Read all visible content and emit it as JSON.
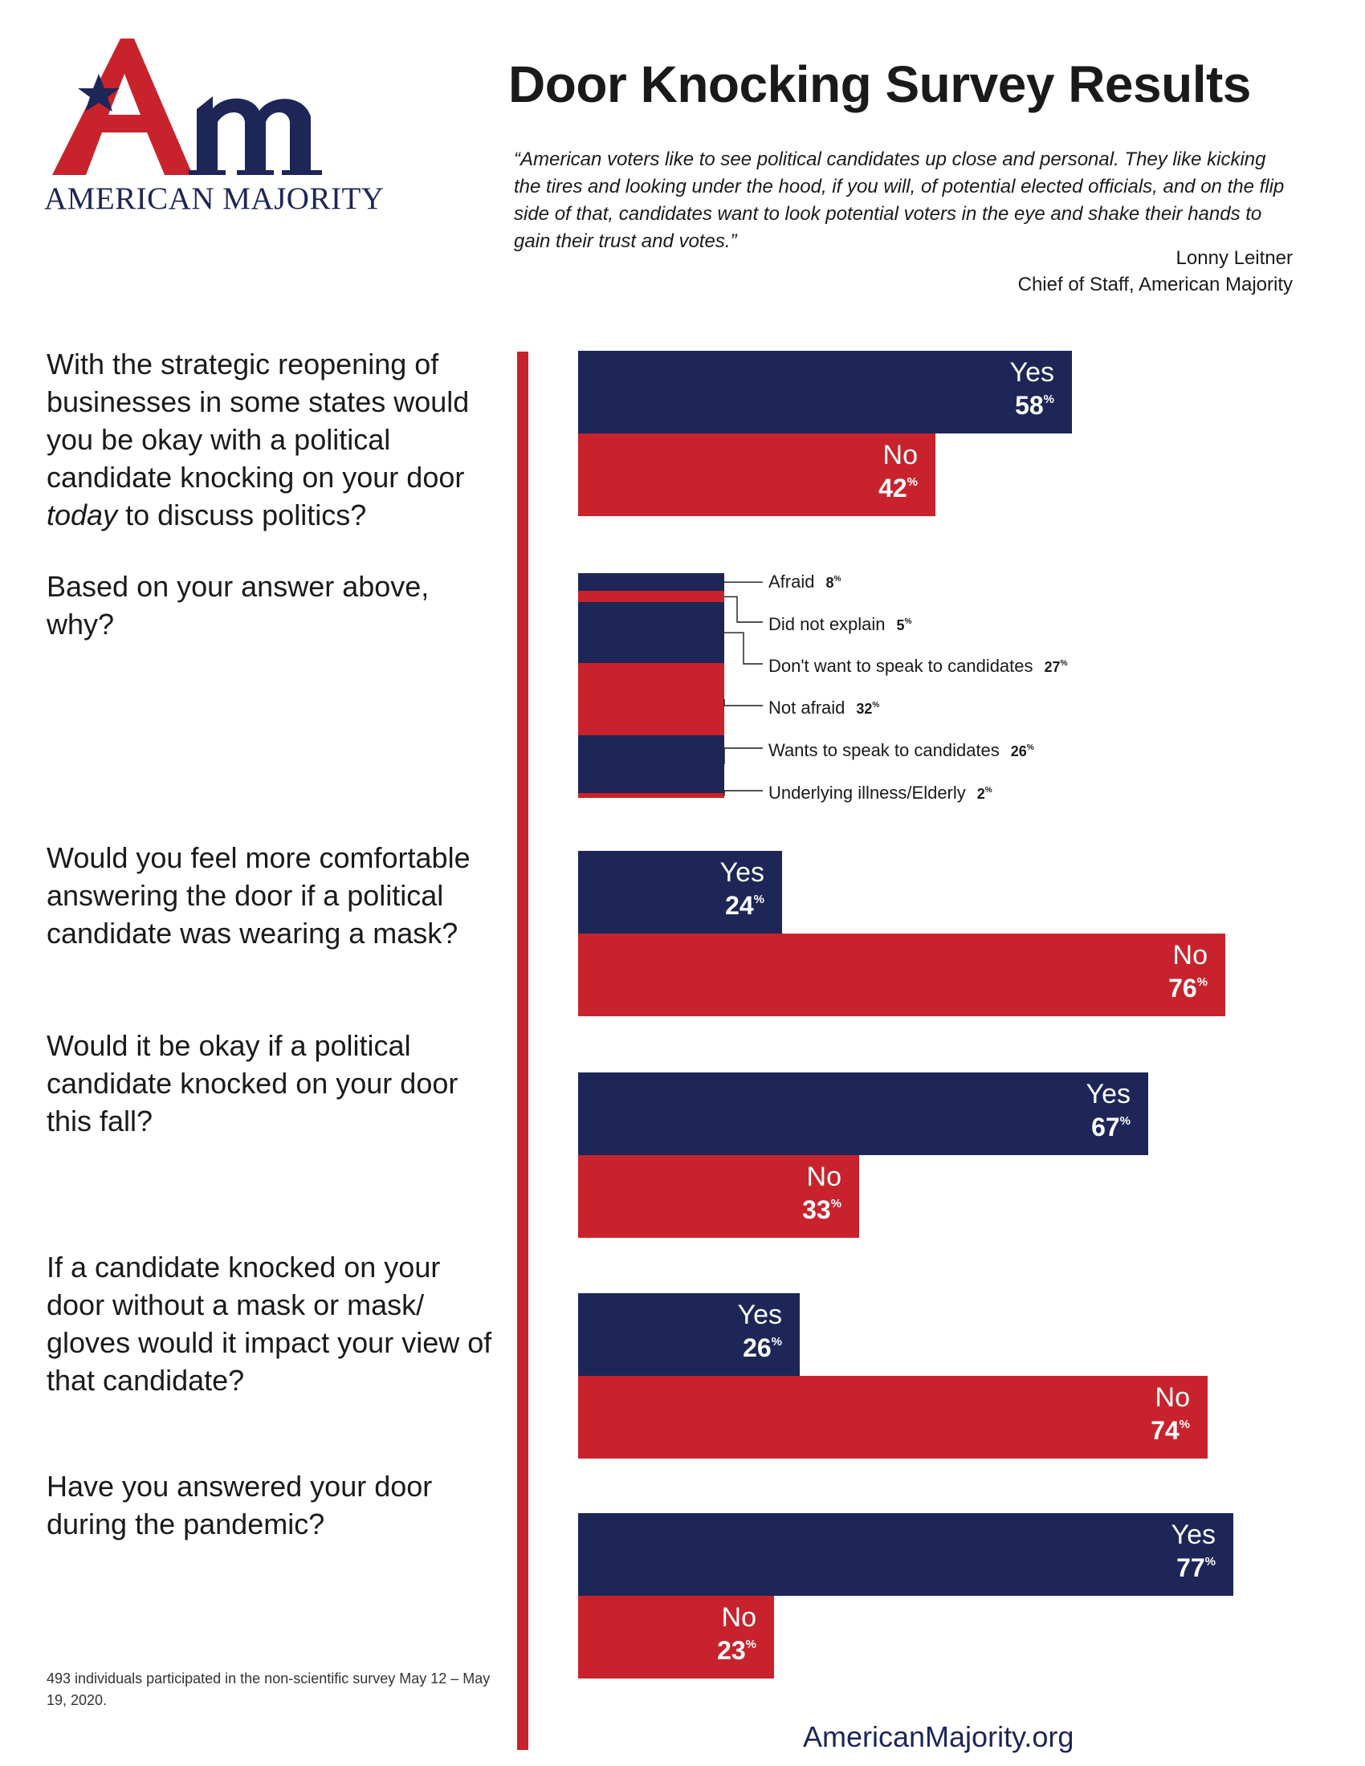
{
  "logo": {
    "monogram": "Am",
    "wordmark": "AMERICAN MAJORITY"
  },
  "header": {
    "title": "Door Knocking Survey Results",
    "quote": "“American voters like to see political candidates up close and personal. They like kicking the tires and looking under the hood, if you will, of potential elected officials, and on the flip side of that, candidates want to look potential voters in the eye and shake their hands to gain their trust and votes.”",
    "attribution_name": "Lonny Leitner",
    "attribution_role": "Chief of Staff, American Majority"
  },
  "questions": [
    "With the strategic reopening of businesses in some states would you be okay with a political candidate knocking on your door today to discuss politics?",
    "Based on your answer above, why?",
    "Would you feel more comfortable answering the door if a political candidate was wearing a mask?",
    "Would it be okay if a political candidate knocked on your door this fall?",
    "If a candidate knocked on your door without a mask or mask/ gloves would it impact your view of that candidate?",
    "Have you answered your door during the pandemic?"
  ],
  "colors": {
    "yes": "#1d2657",
    "no": "#c8232c",
    "accent_red": "#c8232c",
    "navy": "#1d2657"
  },
  "chart_data": [
    {
      "type": "bar",
      "categories": [
        "Yes",
        "No"
      ],
      "values": [
        58,
        42
      ],
      "unit": "%"
    },
    {
      "type": "bar",
      "stacked": true,
      "categories": [
        "Afraid",
        "Did not explain",
        "Don't want to speak to candidates",
        "Not afraid",
        "Wants to speak to candidates",
        "Underlying illness/Elderly"
      ],
      "values": [
        8,
        5,
        27,
        32,
        26,
        2
      ],
      "unit": "%"
    },
    {
      "type": "bar",
      "categories": [
        "Yes",
        "No"
      ],
      "values": [
        24,
        76
      ],
      "unit": "%"
    },
    {
      "type": "bar",
      "categories": [
        "Yes",
        "No"
      ],
      "values": [
        67,
        33
      ],
      "unit": "%"
    },
    {
      "type": "bar",
      "categories": [
        "Yes",
        "No"
      ],
      "values": [
        26,
        74
      ],
      "unit": "%"
    },
    {
      "type": "bar",
      "categories": [
        "Yes",
        "No"
      ],
      "values": [
        77,
        23
      ],
      "unit": "%"
    }
  ],
  "footer": {
    "note": "493 individuals participated in the non-scientific survey May 12 – May 19, 2020.",
    "website": "AmericanMajority.org"
  }
}
